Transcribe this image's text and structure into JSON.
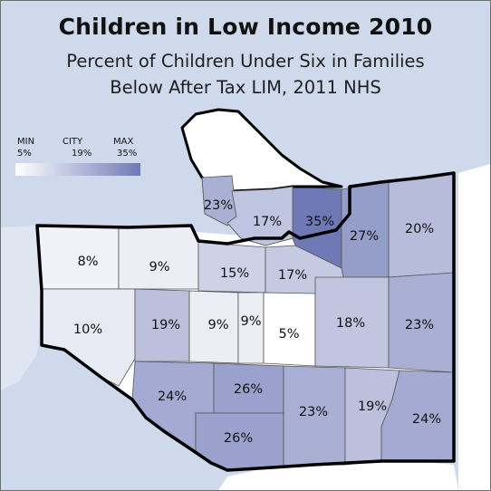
{
  "title": "Children in Low Income 2010",
  "subtitle_line1": "Percent of Children Under Six in Families",
  "subtitle_line2": "Below After Tax LIM, 2011 NHS",
  "legend": {
    "min_label": "MIN",
    "min_value": "5%",
    "city_label": "CITY",
    "city_value": "19%",
    "max_label": "MAX",
    "max_value": "35%",
    "scale_min": 5,
    "scale_max": 35,
    "color_low": "#ffffff",
    "color_high": "#6f79b6"
  },
  "colors": {
    "water": "#cfd9ec",
    "land_outside": "#ffffff",
    "boundary": "#000000",
    "inner_border": "#555555"
  },
  "regions": [
    {
      "id": "west-point-grey",
      "label": "8%",
      "value": 8
    },
    {
      "id": "kitsilano",
      "label": "9%",
      "value": 9
    },
    {
      "id": "fairview",
      "label": "15%",
      "value": 15
    },
    {
      "id": "mount-pleasant",
      "label": "17%",
      "value": 17
    },
    {
      "id": "downtown",
      "label": "17%",
      "value": 17
    },
    {
      "id": "west-end",
      "label": "23%",
      "value": 23
    },
    {
      "id": "strathcona",
      "label": "35%",
      "value": 35
    },
    {
      "id": "grandview-woodland",
      "label": "27%",
      "value": 27
    },
    {
      "id": "hastings-sunrise",
      "label": "20%",
      "value": 20
    },
    {
      "id": "dunbar-southlands",
      "label": "10%",
      "value": 10
    },
    {
      "id": "arbutus-ridge",
      "label": "19%",
      "value": 19
    },
    {
      "id": "shaughnessy",
      "label": "9%",
      "value": 9
    },
    {
      "id": "south-cambie",
      "label": "9%",
      "value": 9
    },
    {
      "id": "riley-park",
      "label": "5%",
      "value": 5
    },
    {
      "id": "kensington-cedar-cottage",
      "label": "18%",
      "value": 18
    },
    {
      "id": "renfrew-collingwood",
      "label": "23%",
      "value": 23
    },
    {
      "id": "kerrisdale",
      "label": "24%",
      "value": 24
    },
    {
      "id": "oakridge",
      "label": "26%",
      "value": 26
    },
    {
      "id": "marpole",
      "label": "26%",
      "value": 26
    },
    {
      "id": "sunset",
      "label": "23%",
      "value": 23
    },
    {
      "id": "victoria-fraserview",
      "label": "19%",
      "value": 19
    },
    {
      "id": "killarney",
      "label": "24%",
      "value": 24
    }
  ]
}
